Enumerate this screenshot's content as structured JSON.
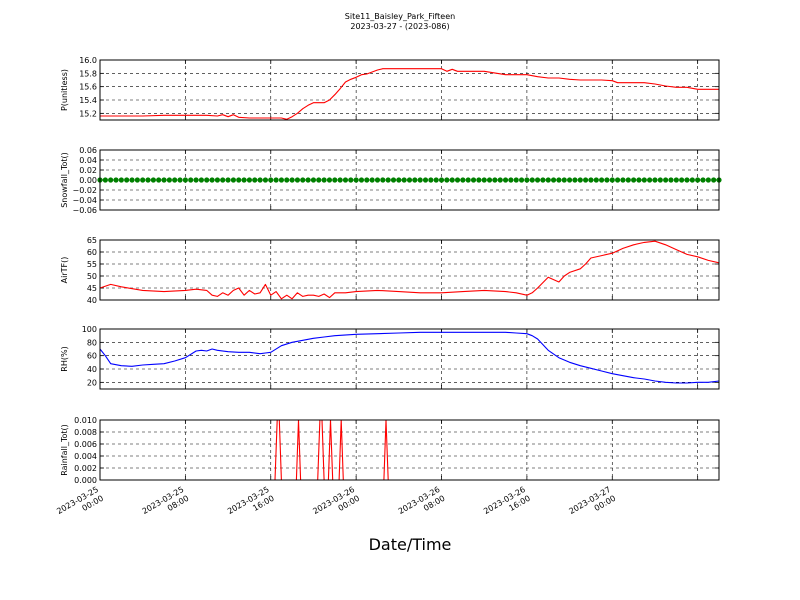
{
  "figure": {
    "title": "Site11_Baisley_Park_Fifteen",
    "subtitle": "2023-03-27 - (2023-086)",
    "xlabel": "Date/Time"
  },
  "chart_data": [
    {
      "type": "line",
      "ylabel": "P(unitless)",
      "ylim": [
        15.1,
        16.0
      ],
      "yticks": [
        15.2,
        15.4,
        15.6,
        15.8,
        16.0
      ],
      "yticklabels": [
        "15.2",
        "15.4",
        "15.6",
        "15.8",
        "16.0"
      ],
      "color": "#ff0000",
      "grid": true,
      "series": [
        {
          "x": [
            0,
            2,
            4,
            6,
            8,
            10,
            11,
            11.5,
            12,
            12.5,
            13,
            14,
            16,
            17,
            17.5,
            18,
            18.5,
            19,
            19.5,
            20,
            21,
            21.5,
            22,
            22.5,
            23,
            23.5,
            24,
            24.5,
            25,
            26,
            26.5,
            27,
            29,
            30,
            32,
            32.5,
            33,
            33.5,
            34,
            36,
            38,
            38.5,
            39,
            40,
            41,
            42,
            43,
            44,
            45,
            46,
            47,
            48,
            48.5,
            49,
            50,
            51,
            52,
            53,
            54,
            54.5,
            55,
            56,
            57,
            58
          ],
          "y": [
            15.16,
            15.16,
            15.16,
            15.17,
            15.17,
            15.17,
            15.16,
            15.18,
            15.15,
            15.18,
            15.14,
            15.13,
            15.13,
            15.13,
            15.11,
            15.15,
            15.2,
            15.27,
            15.32,
            15.36,
            15.36,
            15.4,
            15.48,
            15.57,
            15.67,
            15.71,
            15.74,
            15.78,
            15.79,
            15.85,
            15.87,
            15.87,
            15.87,
            15.87,
            15.87,
            15.83,
            15.86,
            15.83,
            15.83,
            15.83,
            15.78,
            15.78,
            15.78,
            15.78,
            15.75,
            15.73,
            15.73,
            15.71,
            15.7,
            15.7,
            15.7,
            15.69,
            15.66,
            15.66,
            15.66,
            15.66,
            15.64,
            15.61,
            15.59,
            15.59,
            15.59,
            15.56,
            15.56,
            15.56
          ]
        }
      ]
    },
    {
      "type": "scatter",
      "ylabel": "Snowfall_Tot()",
      "ylim": [
        -0.06,
        0.06
      ],
      "yticks": [
        -0.06,
        -0.04,
        -0.02,
        0.0,
        0.02,
        0.04,
        0.06
      ],
      "yticklabels": [
        "−0.06",
        "−0.04",
        "−0.02",
        "0.00",
        "0.02",
        "0.04",
        "0.06"
      ],
      "color": "#008000",
      "grid": true,
      "series": [
        {
          "x": [
            0,
            0.5,
            1,
            1.5,
            2,
            2.5,
            3,
            3.5,
            4,
            4.5,
            5,
            5.5,
            6,
            6.5,
            7,
            7.5,
            8,
            8.5,
            9,
            9.5,
            10,
            10.5,
            11,
            11.5,
            12,
            12.5,
            13,
            13.5,
            14,
            14.5,
            15,
            15.5,
            16,
            16.5,
            17,
            17.5,
            18,
            18.5,
            19,
            19.5,
            20,
            20.5,
            21,
            21.5,
            22,
            22.5,
            23,
            23.5,
            24,
            24.5,
            25,
            25.5,
            26,
            26.5,
            27,
            27.5,
            28,
            28.5,
            29,
            29.5,
            30,
            30.5,
            31,
            31.5,
            32,
            32.5,
            33,
            33.5,
            34,
            34.5,
            35,
            35.5,
            36,
            36.5,
            37,
            37.5,
            38,
            38.5,
            39,
            39.5,
            40,
            40.5,
            41,
            41.5,
            42,
            42.5,
            43,
            43.5,
            44,
            44.5,
            45,
            45.5,
            46,
            46.5,
            47,
            47.5,
            48,
            48.5,
            49,
            49.5,
            50,
            50.5,
            51,
            51.5,
            52,
            52.5,
            53,
            53.5,
            54,
            54.5,
            55,
            55.5,
            56,
            56.5,
            57,
            57.5,
            58
          ],
          "y": [
            0,
            0,
            0,
            0,
            0,
            0,
            0,
            0,
            0,
            0,
            0,
            0,
            0,
            0,
            0,
            0,
            0,
            0,
            0,
            0,
            0,
            0,
            0,
            0,
            0,
            0,
            0,
            0,
            0,
            0,
            0,
            0,
            0,
            0,
            0,
            0,
            0,
            0,
            0,
            0,
            0,
            0,
            0,
            0,
            0,
            0,
            0,
            0,
            0,
            0,
            0,
            0,
            0,
            0,
            0,
            0,
            0,
            0,
            0,
            0,
            0,
            0,
            0,
            0,
            0,
            0,
            0,
            0,
            0,
            0,
            0,
            0,
            0,
            0,
            0,
            0,
            0,
            0,
            0,
            0,
            0,
            0,
            0,
            0,
            0,
            0,
            0,
            0,
            0,
            0,
            0,
            0,
            0,
            0,
            0,
            0,
            0,
            0,
            0,
            0,
            0,
            0,
            0,
            0,
            0,
            0,
            0,
            0,
            0,
            0,
            0,
            0,
            0,
            0,
            0,
            0,
            0
          ]
        }
      ]
    },
    {
      "type": "line",
      "ylabel": "AirTF()",
      "ylim": [
        40,
        65
      ],
      "yticks": [
        40,
        45,
        50,
        55,
        60,
        65
      ],
      "yticklabels": [
        "40",
        "45",
        "50",
        "55",
        "60",
        "65"
      ],
      "color": "#ff0000",
      "grid": true,
      "series": [
        {
          "x": [
            0,
            1,
            2,
            4,
            6,
            8,
            9,
            10,
            10.5,
            11,
            11.5,
            12,
            12.5,
            13,
            13.5,
            14,
            14.5,
            15,
            15.5,
            16,
            16.5,
            17,
            17.5,
            18,
            18.5,
            19,
            19.5,
            20,
            20.5,
            21,
            21.5,
            22,
            23,
            24,
            26,
            28,
            30,
            32,
            34,
            36,
            38,
            39,
            40,
            40.5,
            41,
            42,
            43,
            43.5,
            44,
            45,
            45.5,
            46,
            47,
            48,
            49,
            50,
            51,
            52,
            53,
            54,
            55,
            56,
            57,
            58
          ],
          "y": [
            45,
            46.5,
            45.5,
            44,
            43.5,
            44,
            44.5,
            44,
            42,
            41.5,
            43,
            42,
            44,
            45,
            42,
            44,
            42.5,
            43,
            46.5,
            42,
            43.5,
            40.5,
            42,
            40.5,
            43,
            41.5,
            42,
            42,
            41.5,
            42.5,
            41,
            43,
            43,
            43.5,
            44,
            43.5,
            43,
            43,
            43.5,
            44,
            43.5,
            43,
            42,
            43,
            45,
            49.5,
            47.5,
            50,
            51.5,
            53,
            55,
            57.5,
            58.5,
            59.5,
            61.5,
            63,
            64,
            64.5,
            63,
            61,
            59,
            58,
            56.5,
            55.5
          ]
        }
      ]
    },
    {
      "type": "line",
      "ylabel": "RH(%)",
      "ylim": [
        10,
        100
      ],
      "yticks": [
        20,
        40,
        60,
        80,
        100
      ],
      "yticklabels": [
        "20",
        "40",
        "60",
        "80",
        "100"
      ],
      "color": "#0000ff",
      "grid": true,
      "series": [
        {
          "x": [
            0,
            0.5,
            1,
            2,
            3,
            4,
            5,
            6,
            7,
            8,
            9,
            9.5,
            10,
            10.5,
            11,
            12,
            13,
            14,
            15,
            15.5,
            16,
            17,
            18,
            19,
            20,
            21,
            22,
            24,
            26,
            28,
            30,
            32,
            34,
            36,
            37,
            38,
            39,
            40,
            40.5,
            41,
            42,
            43,
            44,
            45,
            46,
            47,
            48,
            49,
            50,
            51,
            52,
            53,
            54,
            55,
            56,
            57,
            58
          ],
          "y": [
            70,
            60,
            48,
            45,
            44,
            46,
            47,
            48,
            52,
            57,
            67,
            68,
            67,
            70,
            68,
            66,
            65,
            65,
            63,
            64,
            65,
            75,
            80,
            83,
            86,
            88,
            90,
            92,
            93,
            94,
            95,
            95,
            95,
            95,
            95,
            95,
            94,
            93,
            90,
            85,
            68,
            57,
            50,
            45,
            41,
            37,
            33,
            30,
            27,
            25,
            22,
            20,
            19,
            19,
            20,
            20,
            22
          ]
        }
      ]
    },
    {
      "type": "line",
      "ylabel": "Rainfall_Tot()",
      "ylim": [
        0,
        0.01
      ],
      "yticks": [
        0,
        0.002,
        0.004,
        0.006,
        0.008,
        0.01
      ],
      "yticklabels": [
        "0.000",
        "0.002",
        "0.004",
        "0.006",
        "0.008",
        "0.010"
      ],
      "color": "#ff0000",
      "grid": true,
      "xticklabels": [
        "2023-03-25\n00:00",
        "2023-03-25\n08:00",
        "2023-03-25\n16:00",
        "2023-03-26\n00:00",
        "2023-03-26\n08:00",
        "2023-03-26\n16:00",
        "2023-03-27\n00:00"
      ],
      "series": [
        {
          "x": [
            0,
            16.4,
            16.6,
            16.8,
            17.0,
            18.4,
            18.6,
            18.8,
            19.6,
            20.4,
            20.6,
            20.8,
            21.0,
            21.4,
            21.6,
            21.8,
            22.4,
            22.6,
            22.8,
            26.6,
            26.8,
            27.0,
            58
          ],
          "y": [
            0,
            0,
            0.01,
            0.01,
            0,
            0,
            0.01,
            0,
            0,
            0,
            0.01,
            0.01,
            0,
            0,
            0.01,
            0,
            0,
            0.01,
            0,
            0,
            0.01,
            0,
            0
          ]
        }
      ]
    }
  ]
}
